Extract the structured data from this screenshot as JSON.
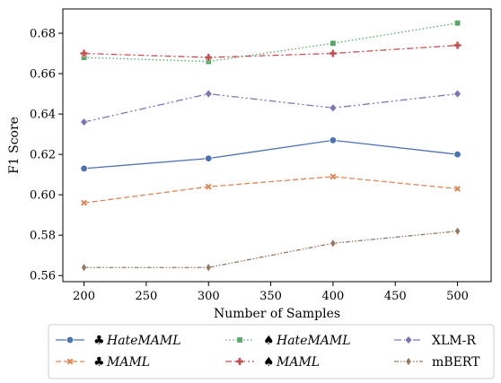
{
  "chart_data": {
    "type": "line",
    "xlabel": "Number of Samples",
    "ylabel": "F1 Score",
    "x": [
      200,
      300,
      400,
      500
    ],
    "xlim": [
      183,
      527
    ],
    "ylim": [
      0.557,
      0.692
    ],
    "xticks": [
      200,
      250,
      300,
      350,
      400,
      450,
      500
    ],
    "yticks": [
      0.56,
      0.58,
      0.6,
      0.62,
      0.64,
      0.66,
      0.68
    ],
    "ytick_labels": [
      "0.56",
      "0.58",
      "0.60",
      "0.62",
      "0.64",
      "0.66",
      "0.68"
    ],
    "grid": false,
    "legend_placement": "below",
    "series": [
      {
        "name": "HateMAML",
        "prefix": "♣",
        "values": [
          0.613,
          0.618,
          0.627,
          0.62
        ],
        "color": "#4c72b0",
        "dash": "solid",
        "marker": "circle"
      },
      {
        "name": "MAML",
        "prefix": "♣",
        "values": [
          0.596,
          0.604,
          0.609,
          0.603
        ],
        "color": "#dd8452",
        "dash": "dashed",
        "marker": "x"
      },
      {
        "name": "HateMAML",
        "prefix": "♠",
        "values": [
          0.668,
          0.666,
          0.675,
          0.685
        ],
        "color": "#55a868",
        "dash": "dotted",
        "marker": "square"
      },
      {
        "name": "MAML",
        "prefix": "♠",
        "values": [
          0.67,
          0.668,
          0.67,
          0.674
        ],
        "color": "#c44e52",
        "dash": "dashdot",
        "marker": "plus"
      },
      {
        "name": "XLM-R",
        "prefix": "",
        "values": [
          0.636,
          0.65,
          0.643,
          0.65
        ],
        "color": "#8172b3",
        "dash": "dashdotdash",
        "marker": "diamond"
      },
      {
        "name": "mBERT",
        "prefix": "",
        "values": [
          0.564,
          0.564,
          0.576,
          0.582
        ],
        "color": "#937860",
        "dash": "dashdotdot",
        "marker": "thin-diamond"
      }
    ]
  }
}
